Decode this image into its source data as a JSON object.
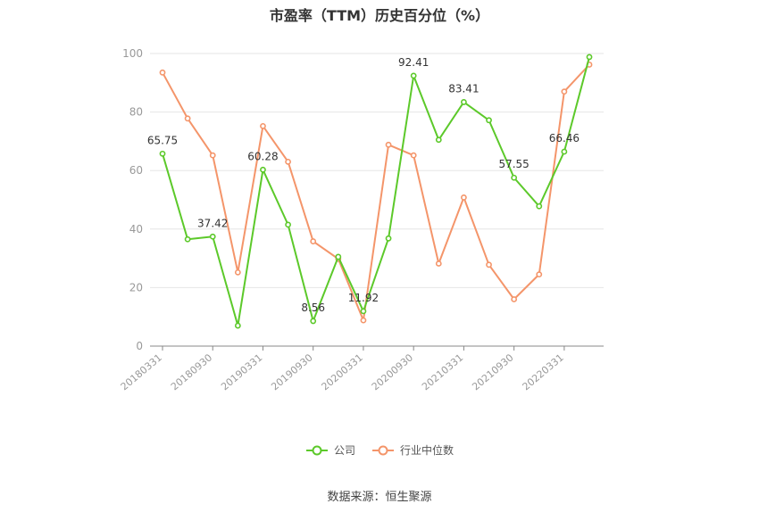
{
  "chart_data": {
    "type": "line",
    "title": "市盈率（TTM）历史百分位（%）",
    "x": [
      "20180331",
      "20180630",
      "20180930",
      "20181231",
      "20190331",
      "20190630",
      "20190930",
      "20191231",
      "20200331",
      "20200630",
      "20200930",
      "20201231",
      "20210331",
      "20210630",
      "20210930",
      "20211231",
      "20220331",
      "20220630"
    ],
    "x_tick_labels": [
      "20180331",
      "20180930",
      "20190331",
      "20190930",
      "20200331",
      "20200930",
      "20210331",
      "20210930",
      "20220331"
    ],
    "ylim": [
      0,
      100
    ],
    "y_ticks": [
      0,
      20,
      40,
      60,
      80,
      100
    ],
    "grid": true,
    "legend_position": "bottom",
    "series": [
      {
        "name": "公司",
        "color": "#5cc92a",
        "values": [
          65.75,
          36.5,
          37.42,
          7.0,
          60.28,
          41.5,
          8.56,
          30.5,
          11.92,
          36.8,
          92.41,
          70.5,
          83.41,
          77.2,
          57.55,
          47.8,
          66.46,
          98.8
        ],
        "labels": [
          "65.75",
          null,
          "37.42",
          null,
          "60.28",
          null,
          "8.56",
          null,
          "11.92",
          null,
          "92.41",
          null,
          "83.41",
          null,
          "57.55",
          null,
          "66.46",
          null
        ]
      },
      {
        "name": "行业中位数",
        "color": "#f4956a",
        "values": [
          93.5,
          77.8,
          65.2,
          25.2,
          75.2,
          63.0,
          35.8,
          29.8,
          8.8,
          68.8,
          65.2,
          28.2,
          50.8,
          27.8,
          16.0,
          24.5,
          87.0,
          96.2
        ]
      }
    ]
  },
  "source_text": "数据来源：恒生聚源"
}
